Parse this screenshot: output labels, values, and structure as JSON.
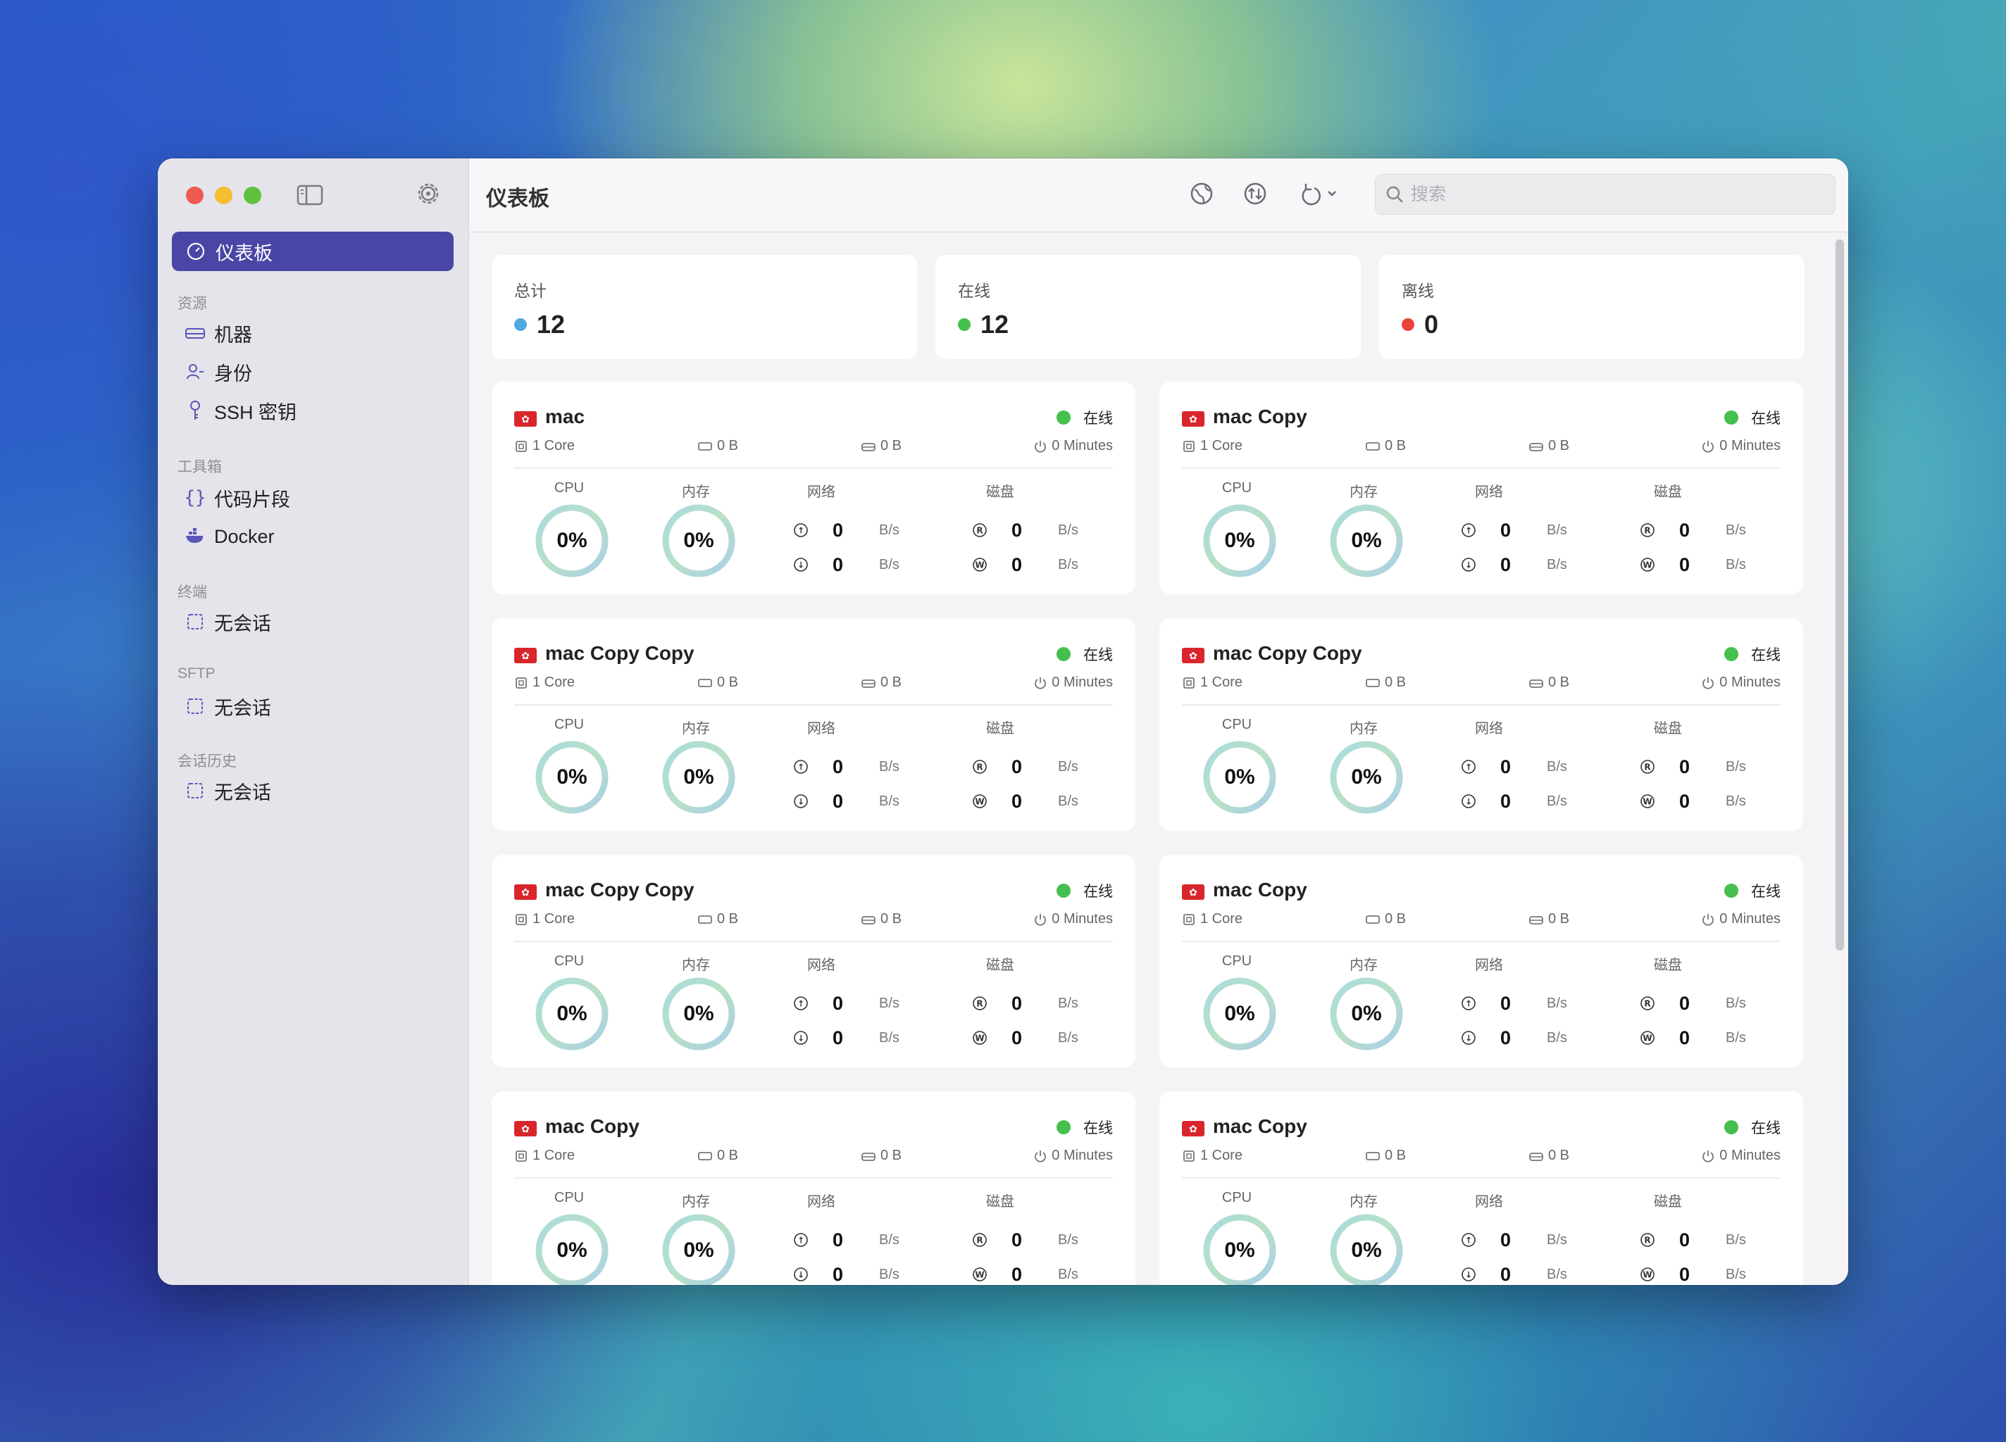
{
  "sidebar": {
    "active_item": "仪表板",
    "sections": [
      {
        "title": "资源",
        "items": [
          "机器",
          "身份",
          "SSH 密钥"
        ]
      },
      {
        "title": "工具箱",
        "items": [
          "代码片段",
          "Docker"
        ]
      },
      {
        "title": "终端",
        "items": [
          "无会话"
        ]
      },
      {
        "title": "SFTP",
        "items": [
          "无会话"
        ]
      },
      {
        "title": "会话历史",
        "items": [
          "无会话"
        ]
      }
    ]
  },
  "toolbar": {
    "title": "仪表板",
    "search_placeholder": "搜索"
  },
  "stats": [
    {
      "label": "总计",
      "value": "12",
      "color": "#4fa8e0"
    },
    {
      "label": "在线",
      "value": "12",
      "color": "#45c04e"
    },
    {
      "label": "离线",
      "value": "0",
      "color": "#e8443a"
    }
  ],
  "colors": {
    "accent": "#4a46a6",
    "online": "#45c04e",
    "flag": "#d9262c"
  },
  "labels": {
    "cpu": "CPU",
    "memory": "内存",
    "network": "网络",
    "disk": "磁盘",
    "unit": "B/s",
    "status": "在线"
  },
  "machines": [
    {
      "name": "mac",
      "cores": "1 Core",
      "mem": "0 B",
      "disk": "0 B",
      "uptime": "0 Minutes",
      "cpu": "0%",
      "memory": "0%",
      "up": "0",
      "down": "0",
      "read": "0",
      "write": "0"
    },
    {
      "name": "mac Copy",
      "cores": "1 Core",
      "mem": "0 B",
      "disk": "0 B",
      "uptime": "0 Minutes",
      "cpu": "0%",
      "memory": "0%",
      "up": "0",
      "down": "0",
      "read": "0",
      "write": "0"
    },
    {
      "name": "mac Copy Copy",
      "cores": "1 Core",
      "mem": "0 B",
      "disk": "0 B",
      "uptime": "0 Minutes",
      "cpu": "0%",
      "memory": "0%",
      "up": "0",
      "down": "0",
      "read": "0",
      "write": "0"
    },
    {
      "name": "mac Copy Copy",
      "cores": "1 Core",
      "mem": "0 B",
      "disk": "0 B",
      "uptime": "0 Minutes",
      "cpu": "0%",
      "memory": "0%",
      "up": "0",
      "down": "0",
      "read": "0",
      "write": "0"
    },
    {
      "name": "mac Copy Copy",
      "cores": "1 Core",
      "mem": "0 B",
      "disk": "0 B",
      "uptime": "0 Minutes",
      "cpu": "0%",
      "memory": "0%",
      "up": "0",
      "down": "0",
      "read": "0",
      "write": "0"
    },
    {
      "name": "mac Copy",
      "cores": "1 Core",
      "mem": "0 B",
      "disk": "0 B",
      "uptime": "0 Minutes",
      "cpu": "0%",
      "memory": "0%",
      "up": "0",
      "down": "0",
      "read": "0",
      "write": "0"
    },
    {
      "name": "mac Copy",
      "cores": "1 Core",
      "mem": "0 B",
      "disk": "0 B",
      "uptime": "0 Minutes",
      "cpu": "0%",
      "memory": "0%",
      "up": "0",
      "down": "0",
      "read": "0",
      "write": "0"
    },
    {
      "name": "mac Copy",
      "cores": "1 Core",
      "mem": "0 B",
      "disk": "0 B",
      "uptime": "0 Minutes",
      "cpu": "0%",
      "memory": "0%",
      "up": "0",
      "down": "0",
      "read": "0",
      "write": "0"
    }
  ]
}
